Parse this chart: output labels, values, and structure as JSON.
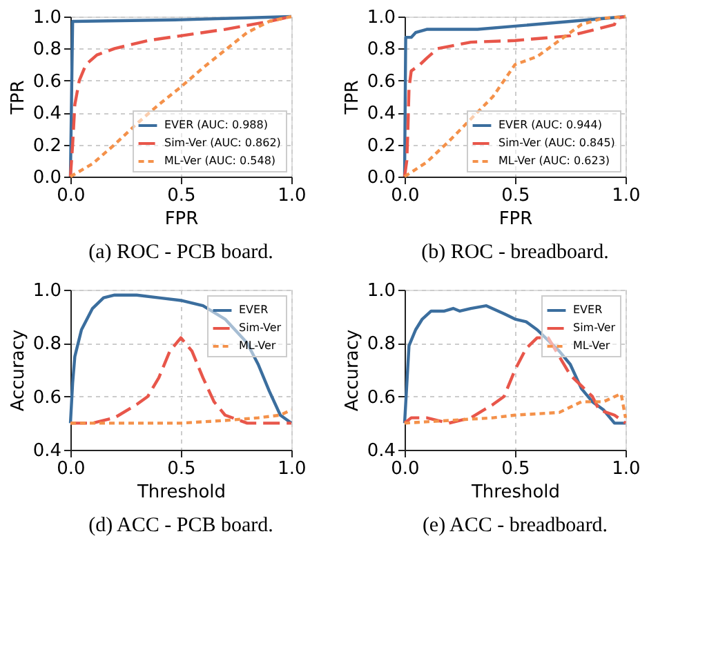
{
  "chart_data": [
    {
      "type": "line",
      "xlabel": "FPR",
      "ylabel": "TPR",
      "annotations": [
        "(a) ROC - PCB board."
      ],
      "grid": true,
      "legend": "bottom right",
      "xlim": [
        0,
        1
      ],
      "ylim": [
        0,
        1
      ],
      "xticks": [
        {
          "value": 0,
          "label": "0.0"
        },
        {
          "value": 0.5,
          "label": "0.5"
        },
        {
          "value": 1,
          "label": "1.0"
        }
      ],
      "yticks": [
        {
          "value": 0,
          "label": "0.0"
        },
        {
          "value": 0.2,
          "label": "0.2"
        },
        {
          "value": 0.4,
          "label": "0.4"
        },
        {
          "value": 0.6,
          "label": "0.6"
        },
        {
          "value": 0.8,
          "label": "0.8"
        },
        {
          "value": 1,
          "label": "1.0"
        }
      ],
      "series": [
        {
          "name": "EVER (AUC: 0.988)",
          "color": "#3b6e9e",
          "line_style": "solid",
          "x": [
            0,
            0.01,
            0.02,
            0.5,
            1
          ],
          "values": [
            0,
            0.97,
            0.97,
            0.98,
            1
          ]
        },
        {
          "name": "Sim-Ver (AUC: 0.862)",
          "color": "#e8564a",
          "line_style": "dashed",
          "x": [
            0,
            0.01,
            0.02,
            0.04,
            0.07,
            0.12,
            0.2,
            0.35,
            0.5,
            0.7,
            0.9,
            1
          ],
          "values": [
            0,
            0.2,
            0.45,
            0.6,
            0.7,
            0.76,
            0.8,
            0.85,
            0.88,
            0.92,
            0.97,
            1
          ]
        },
        {
          "name": "ML-Ver (AUC: 0.548)",
          "color": "#f4914a",
          "line_style": "dotted",
          "x": [
            0,
            0.1,
            0.2,
            0.3,
            0.4,
            0.5,
            0.6,
            0.7,
            0.8,
            0.9,
            1
          ],
          "values": [
            0,
            0.08,
            0.2,
            0.33,
            0.45,
            0.56,
            0.68,
            0.79,
            0.9,
            0.97,
            1
          ]
        }
      ]
    },
    {
      "type": "line",
      "xlabel": "FPR",
      "ylabel": "TPR",
      "annotations": [
        "(b) ROC - breadboard."
      ],
      "grid": true,
      "legend": "bottom right",
      "xlim": [
        0,
        1
      ],
      "ylim": [
        0,
        1
      ],
      "xticks": [
        {
          "value": 0,
          "label": "0.0"
        },
        {
          "value": 0.5,
          "label": "0.5"
        },
        {
          "value": 1,
          "label": "1.0"
        }
      ],
      "yticks": [
        {
          "value": 0,
          "label": "0.0"
        },
        {
          "value": 0.2,
          "label": "0.2"
        },
        {
          "value": 0.4,
          "label": "0.4"
        },
        {
          "value": 0.6,
          "label": "0.6"
        },
        {
          "value": 0.8,
          "label": "0.8"
        },
        {
          "value": 1,
          "label": "1.0"
        }
      ],
      "series": [
        {
          "name": "EVER (AUC: 0.944)",
          "color": "#3b6e9e",
          "line_style": "solid",
          "x": [
            0,
            0.005,
            0.03,
            0.05,
            0.1,
            0.33,
            0.5,
            0.75,
            1
          ],
          "values": [
            0,
            0.87,
            0.87,
            0.9,
            0.92,
            0.92,
            0.94,
            0.97,
            1
          ]
        },
        {
          "name": "Sim-Ver (AUC: 0.845)",
          "color": "#e8564a",
          "line_style": "dashed",
          "x": [
            0,
            0.01,
            0.015,
            0.02,
            0.03,
            0.07,
            0.1,
            0.15,
            0.3,
            0.5,
            0.75,
            0.95,
            0.96,
            1
          ],
          "values": [
            0,
            0.1,
            0.3,
            0.55,
            0.66,
            0.7,
            0.74,
            0.8,
            0.84,
            0.85,
            0.88,
            0.95,
            0.99,
            1
          ]
        },
        {
          "name": "ML-Ver (AUC: 0.623)",
          "color": "#f4914a",
          "line_style": "dotted",
          "x": [
            0,
            0.1,
            0.2,
            0.3,
            0.4,
            0.5,
            0.6,
            0.7,
            0.8,
            0.9,
            1
          ],
          "values": [
            0,
            0.09,
            0.22,
            0.36,
            0.5,
            0.7,
            0.75,
            0.85,
            0.95,
            0.99,
            1
          ]
        }
      ]
    },
    {
      "type": "line",
      "xlabel": "Threshold",
      "ylabel": "Accuracy",
      "annotations": [
        "(d) ACC - PCB board."
      ],
      "grid": true,
      "legend": "top right",
      "xlim": [
        0,
        1
      ],
      "ylim": [
        0.4,
        1
      ],
      "xticks": [
        {
          "value": 0,
          "label": "0.0"
        },
        {
          "value": 0.5,
          "label": "0.5"
        },
        {
          "value": 1,
          "label": "1.0"
        }
      ],
      "yticks": [
        {
          "value": 0.4,
          "label": "0.4"
        },
        {
          "value": 0.6,
          "label": "0.6"
        },
        {
          "value": 0.8,
          "label": "0.8"
        },
        {
          "value": 1,
          "label": "1.0"
        }
      ],
      "series": [
        {
          "name": "EVER",
          "color": "#3b6e9e",
          "line_style": "solid",
          "x": [
            0,
            0.01,
            0.02,
            0.05,
            0.1,
            0.15,
            0.2,
            0.3,
            0.4,
            0.5,
            0.6,
            0.7,
            0.8,
            0.85,
            0.9,
            0.95,
            1
          ],
          "values": [
            0.5,
            0.65,
            0.75,
            0.85,
            0.93,
            0.97,
            0.98,
            0.98,
            0.97,
            0.96,
            0.94,
            0.89,
            0.8,
            0.72,
            0.62,
            0.53,
            0.5
          ]
        },
        {
          "name": "Sim-Ver",
          "color": "#e8564a",
          "line_style": "dashed",
          "x": [
            0,
            0.1,
            0.2,
            0.3,
            0.35,
            0.4,
            0.45,
            0.5,
            0.55,
            0.6,
            0.65,
            0.7,
            0.8,
            1
          ],
          "values": [
            0.5,
            0.5,
            0.52,
            0.57,
            0.6,
            0.67,
            0.77,
            0.82,
            0.77,
            0.67,
            0.58,
            0.53,
            0.5,
            0.5
          ]
        },
        {
          "name": "ML-Ver",
          "color": "#f4914a",
          "line_style": "dotted",
          "x": [
            0,
            0.2,
            0.5,
            0.7,
            0.85,
            0.95,
            1
          ],
          "values": [
            0.5,
            0.5,
            0.5,
            0.51,
            0.52,
            0.53,
            0.55
          ]
        }
      ]
    },
    {
      "type": "line",
      "xlabel": "Threshold",
      "ylabel": "Accuracy",
      "annotations": [
        "(e) ACC - breadboard."
      ],
      "grid": true,
      "legend": "top right",
      "xlim": [
        0,
        1
      ],
      "ylim": [
        0.4,
        1
      ],
      "xticks": [
        {
          "value": 0,
          "label": "0.0"
        },
        {
          "value": 0.5,
          "label": "0.5"
        },
        {
          "value": 1,
          "label": "1.0"
        }
      ],
      "yticks": [
        {
          "value": 0.4,
          "label": "0.4"
        },
        {
          "value": 0.6,
          "label": "0.6"
        },
        {
          "value": 0.8,
          "label": "0.8"
        },
        {
          "value": 1,
          "label": "1.0"
        }
      ],
      "series": [
        {
          "name": "EVER",
          "color": "#3b6e9e",
          "line_style": "solid",
          "x": [
            0,
            0.02,
            0.05,
            0.08,
            0.12,
            0.18,
            0.22,
            0.25,
            0.3,
            0.37,
            0.45,
            0.5,
            0.55,
            0.6,
            0.7,
            0.75,
            0.8,
            0.85,
            0.9,
            0.95,
            1
          ],
          "values": [
            0.5,
            0.79,
            0.85,
            0.89,
            0.92,
            0.92,
            0.93,
            0.92,
            0.93,
            0.94,
            0.91,
            0.89,
            0.88,
            0.85,
            0.77,
            0.72,
            0.63,
            0.58,
            0.55,
            0.5,
            0.5
          ]
        },
        {
          "name": "Sim-Ver",
          "color": "#e8564a",
          "line_style": "dashed",
          "x": [
            0,
            0.03,
            0.1,
            0.2,
            0.3,
            0.4,
            0.45,
            0.5,
            0.55,
            0.6,
            0.65,
            0.7,
            0.75,
            0.8,
            0.85,
            0.88,
            0.95,
            1
          ],
          "values": [
            0.5,
            0.52,
            0.52,
            0.5,
            0.52,
            0.57,
            0.6,
            0.7,
            0.78,
            0.82,
            0.82,
            0.75,
            0.68,
            0.64,
            0.6,
            0.55,
            0.53,
            0.5
          ]
        },
        {
          "name": "ML-Ver",
          "color": "#f4914a",
          "line_style": "dotted",
          "x": [
            0,
            0.2,
            0.4,
            0.5,
            0.7,
            0.8,
            0.9,
            0.98,
            1
          ],
          "values": [
            0.5,
            0.51,
            0.52,
            0.53,
            0.54,
            0.58,
            0.58,
            0.61,
            0.52
          ]
        }
      ]
    }
  ]
}
